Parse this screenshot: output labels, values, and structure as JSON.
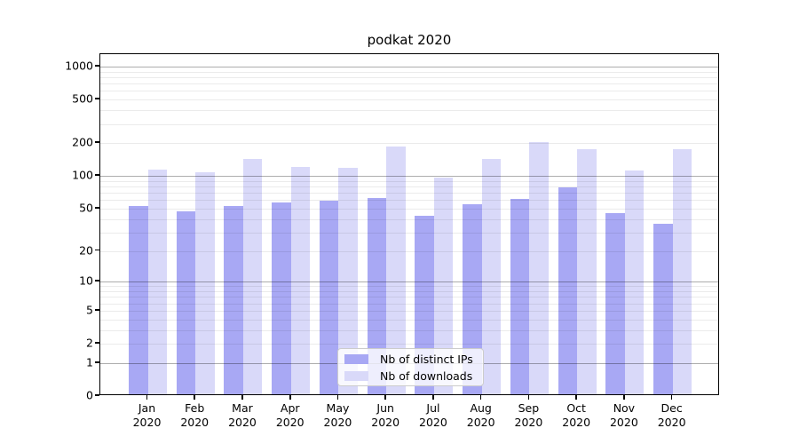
{
  "title": "podkat 2020",
  "chart_data": {
    "type": "bar",
    "title": "podkat 2020",
    "categories": [
      {
        "month": "Jan",
        "year": "2020"
      },
      {
        "month": "Feb",
        "year": "2020"
      },
      {
        "month": "Mar",
        "year": "2020"
      },
      {
        "month": "Apr",
        "year": "2020"
      },
      {
        "month": "May",
        "year": "2020"
      },
      {
        "month": "Jun",
        "year": "2020"
      },
      {
        "month": "Jul",
        "year": "2020"
      },
      {
        "month": "Aug",
        "year": "2020"
      },
      {
        "month": "Sep",
        "year": "2020"
      },
      {
        "month": "Oct",
        "year": "2020"
      },
      {
        "month": "Nov",
        "year": "2020"
      },
      {
        "month": "Dec",
        "year": "2020"
      }
    ],
    "series": [
      {
        "name": "Nb of distinct IPs",
        "color": "#a8a8f4",
        "values": [
          51,
          45,
          51,
          55,
          57,
          60,
          41,
          53,
          59,
          76,
          44,
          35
        ]
      },
      {
        "name": "Nb of downloads",
        "color": "#d9d9f9",
        "values": [
          110,
          105,
          138,
          117,
          115,
          181,
          93,
          138,
          196,
          170,
          108,
          170
        ]
      }
    ],
    "yscale": "symlog",
    "y_ticks": [
      0,
      1,
      2,
      5,
      10,
      20,
      50,
      100,
      200,
      500,
      1000
    ],
    "y_major_gridlines": [
      1,
      10,
      100,
      1000
    ],
    "ylim": [
      0,
      1300
    ],
    "grid": "both",
    "legend_position": "lower center inside"
  }
}
